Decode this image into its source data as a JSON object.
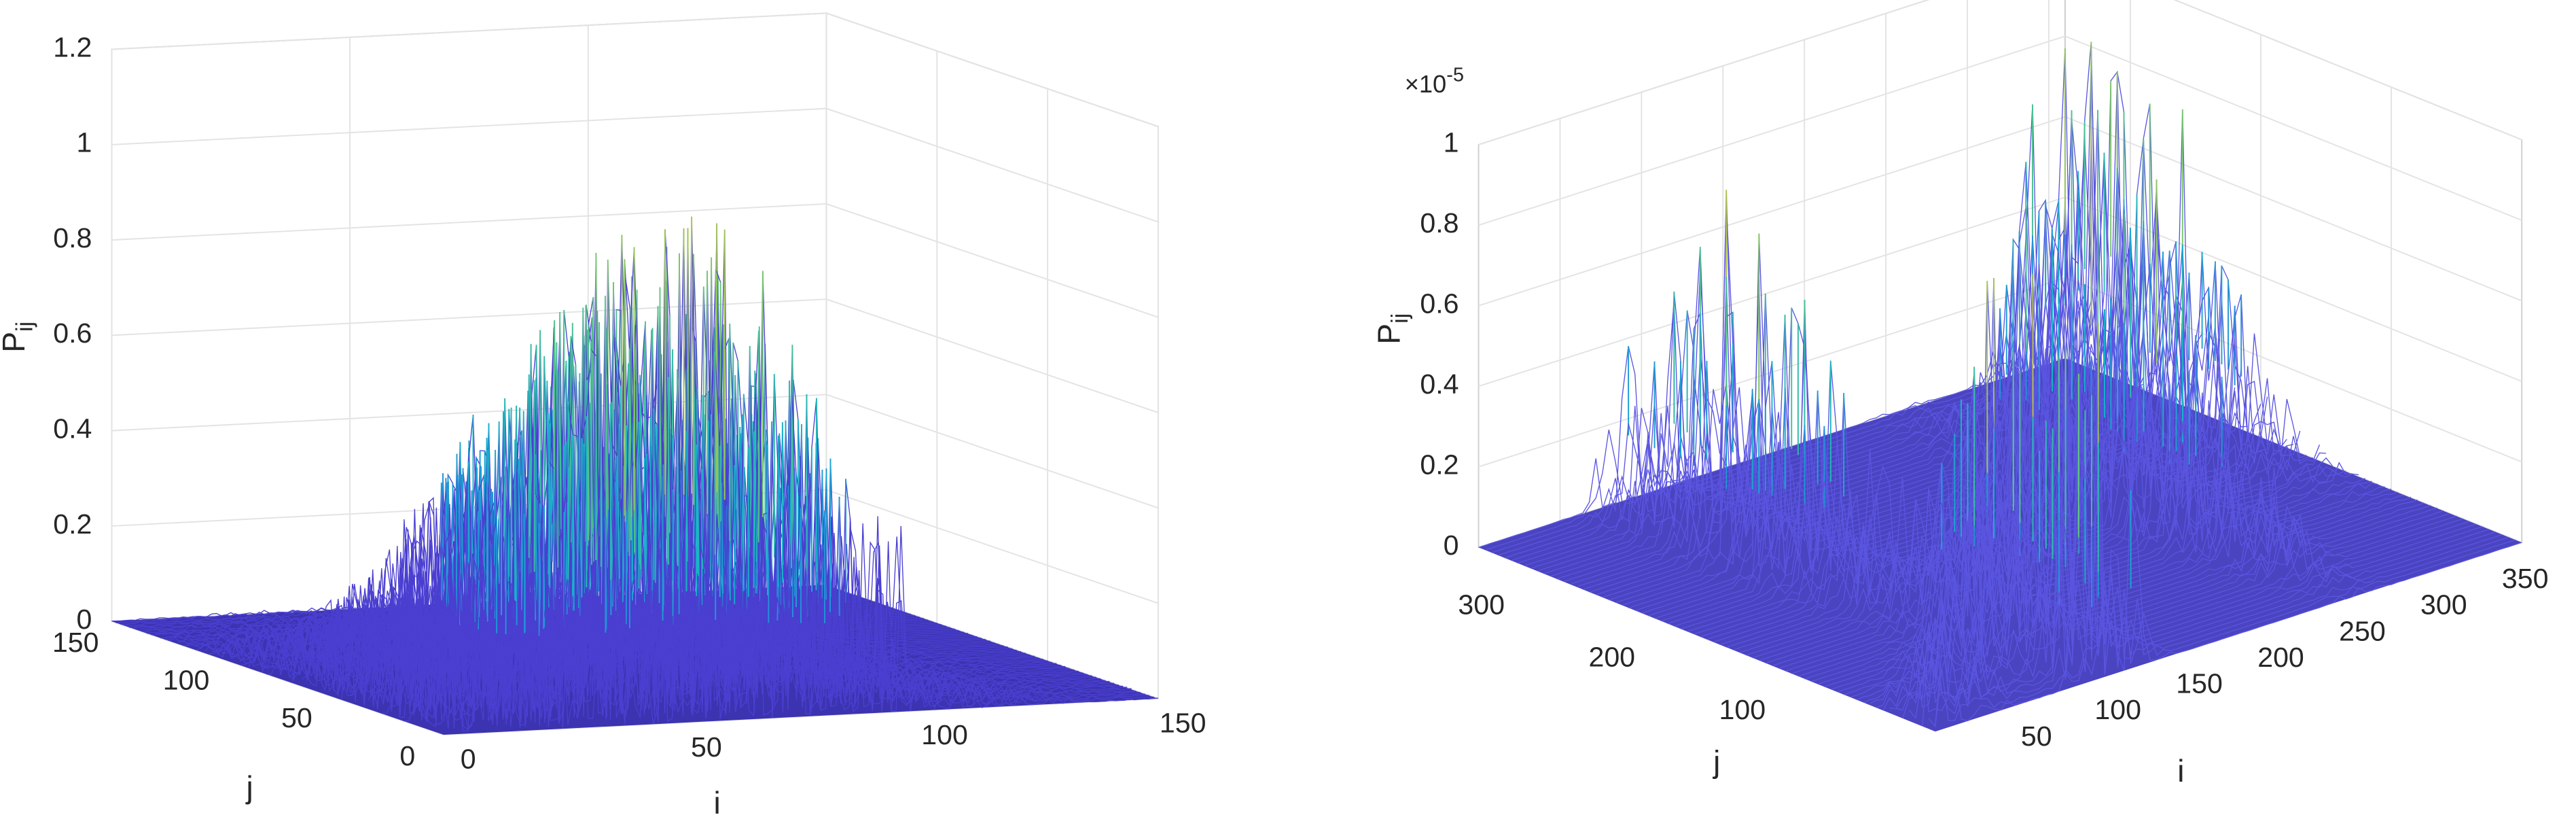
{
  "chart_data": [
    {
      "type": "surface",
      "xlabel": "i",
      "ylabel": "j",
      "zlabel": "P",
      "zlabel_subscript": "ij",
      "xlim": [
        0,
        150
      ],
      "xticks": [
        0,
        50,
        100,
        150
      ],
      "ylim": [
        0,
        150
      ],
      "yticks": [
        0,
        50,
        100,
        150
      ],
      "zlim": [
        0,
        1.2
      ],
      "zticks": [
        0,
        0.2,
        0.4,
        0.6,
        0.8,
        1,
        1.2
      ],
      "grid": true,
      "colormap": "parula"
    },
    {
      "type": "surface",
      "xlabel": "i",
      "ylabel": "j",
      "zlabel": "P",
      "zlabel_subscript": "ij",
      "exponent_label": "×10",
      "exponent": "-5",
      "xlim": [
        0,
        360
      ],
      "xticks": [
        50,
        100,
        150,
        200,
        250,
        300,
        350
      ],
      "ylim": [
        0,
        350
      ],
      "yticks": [
        100,
        200,
        300
      ],
      "zlim": [
        0,
        1
      ],
      "zticks": [
        0,
        0.2,
        0.4,
        0.6,
        0.8,
        1
      ],
      "grid": true,
      "colormap": "parula"
    }
  ]
}
